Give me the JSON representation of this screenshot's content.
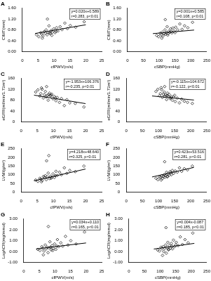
{
  "chart_data": [
    {
      "type": "scatter",
      "title": "A",
      "x_label": "cfPWV(m/s)",
      "y_label": "CIMT(mm)",
      "xlim": [
        0,
        25
      ],
      "xticks": [
        0,
        5,
        10,
        15,
        20,
        25
      ],
      "ylim": [
        0,
        1.6
      ],
      "yticks": [
        {
          "value": 0,
          "label": "0.00"
        },
        {
          "value": 0.4,
          "label": "0.40"
        },
        {
          "value": 0.8,
          "label": "0.80"
        },
        {
          "value": 1.2,
          "label": "1.20"
        },
        {
          "value": 1.6,
          "label": "1.60"
        }
      ],
      "grid": false,
      "annotations": [
        "y=0.020x+0.589",
        "r=0.283, p<0.01"
      ],
      "series": [
        {
          "type": "scatter",
          "marker": "diamond",
          "color": "#000000",
          "x": [
            4.5,
            5.2,
            5.8,
            6.1,
            6.5,
            6.9,
            7.2,
            7.5,
            7.8,
            8.1,
            8.4,
            8.8,
            9.1,
            9.5,
            9.9,
            10.3,
            10.8,
            11.2,
            11.9,
            12.5,
            13.4,
            14.2,
            15.1,
            16.8,
            19.5,
            6.3,
            7.9,
            9.3,
            10.6,
            8.6
          ],
          "values": [
            0.62,
            0.55,
            0.7,
            0.65,
            0.58,
            0.74,
            0.68,
            0.8,
            0.62,
            0.71,
            0.95,
            0.66,
            0.78,
            0.72,
            0.84,
            0.7,
            0.88,
            0.76,
            0.92,
            0.81,
            1.05,
            0.85,
            0.96,
            0.9,
            1.1,
            0.5,
            1.2,
            0.6,
            0.75,
            0.69
          ]
        },
        {
          "type": "line",
          "color": "#000000",
          "x": [
            4,
            20
          ],
          "values": [
            0.669,
            0.989
          ]
        }
      ]
    },
    {
      "type": "scatter",
      "title": "B",
      "x_label": "cSBP(mmHg)",
      "y_label": "CIMT(mm)",
      "xlim": [
        0,
        250
      ],
      "xticks": [
        0,
        50,
        100,
        150,
        200,
        250
      ],
      "ylim": [
        0,
        1.6
      ],
      "yticks": [
        {
          "value": 0,
          "label": "0.00"
        },
        {
          "value": 0.4,
          "label": "0.40"
        },
        {
          "value": 0.8,
          "label": "0.80"
        },
        {
          "value": 1.2,
          "label": "1.20"
        },
        {
          "value": 1.6,
          "label": "1.60"
        }
      ],
      "grid": false,
      "annotations": [
        "y=0.001x+0.585",
        "r=0.108, p<0.01"
      ],
      "series": [
        {
          "type": "scatter",
          "marker": "diamond",
          "color": "#000000",
          "x": [
            92,
            98,
            103,
            106,
            110,
            112,
            115,
            118,
            120,
            122,
            125,
            128,
            130,
            133,
            136,
            140,
            143,
            147,
            152,
            158,
            165,
            172,
            180,
            190,
            205,
            108,
            119,
            127,
            138,
            150
          ],
          "values": [
            0.6,
            0.55,
            0.68,
            0.62,
            0.72,
            0.58,
            0.66,
            0.8,
            0.64,
            0.7,
            0.92,
            0.67,
            0.75,
            0.71,
            0.84,
            0.69,
            0.87,
            0.76,
            0.9,
            0.8,
            1.02,
            0.82,
            0.95,
            0.88,
            1.08,
            0.5,
            1.18,
            0.61,
            0.74,
            0.7
          ]
        },
        {
          "type": "line",
          "color": "#000000",
          "x": [
            80,
            210
          ],
          "values": [
            0.665,
            0.795
          ]
        }
      ]
    },
    {
      "type": "scatter",
      "title": "C",
      "x_label": "cfPWV(m/s)",
      "y_label": "eGFR(ml/min/1.73m²)",
      "xlim": [
        0,
        25
      ],
      "xticks": [
        0,
        5,
        10,
        15,
        20,
        25
      ],
      "ylim": [
        0,
        160
      ],
      "yticks": [
        0,
        40,
        80,
        120,
        160
      ],
      "grid": false,
      "annotations": [
        "y=-1.953x+106.376",
        "r=-0.235, p<0.01"
      ],
      "series": [
        {
          "type": "scatter",
          "marker": "diamond",
          "color": "#000000",
          "x": [
            4.5,
            5.2,
            5.8,
            6.1,
            6.5,
            6.9,
            7.2,
            7.5,
            7.8,
            8.1,
            8.4,
            8.8,
            9.1,
            9.5,
            9.9,
            10.3,
            10.8,
            11.2,
            11.9,
            12.5,
            13.4,
            14.2,
            15.1,
            16.8,
            19.5,
            6.3,
            7.9,
            9.3,
            10.6,
            8.6
          ],
          "values": [
            110,
            118,
            95,
            104,
            120,
            88,
            100,
            112,
            92,
            98,
            80,
            106,
            96,
            102,
            85,
            94,
            78,
            90,
            72,
            86,
            60,
            82,
            70,
            68,
            55,
            125,
            130,
            98,
            88,
            100
          ]
        },
        {
          "type": "line",
          "color": "#000000",
          "x": [
            4,
            20
          ],
          "values": [
            98.56,
            67.32
          ]
        }
      ]
    },
    {
      "type": "scatter",
      "title": "D",
      "x_label": "cSBP(mmHg)",
      "y_label": "eGFR(ml/min/1.73m²)",
      "xlim": [
        0,
        250
      ],
      "xticks": [
        0,
        50,
        100,
        150,
        200,
        250
      ],
      "ylim": [
        0,
        160
      ],
      "yticks": [
        0,
        40,
        80,
        120,
        160
      ],
      "grid": false,
      "annotations": [
        "y=-0.115x+104.672",
        "r=-0.122, p<0.01"
      ],
      "series": [
        {
          "type": "scatter",
          "marker": "diamond",
          "color": "#000000",
          "x": [
            92,
            98,
            103,
            106,
            110,
            112,
            115,
            118,
            120,
            122,
            125,
            128,
            130,
            133,
            136,
            140,
            143,
            147,
            152,
            158,
            165,
            172,
            180,
            190,
            205,
            108,
            119,
            127,
            138,
            150
          ],
          "values": [
            112,
            120,
            96,
            104,
            118,
            90,
            102,
            110,
            94,
            99,
            82,
            106,
            95,
            101,
            86,
            93,
            80,
            92,
            75,
            88,
            70,
            84,
            76,
            72,
            68,
            126,
            130,
            97,
            89,
            98
          ]
        },
        {
          "type": "line",
          "color": "#000000",
          "x": [
            80,
            210
          ],
          "values": [
            95.47,
            80.52
          ]
        }
      ]
    },
    {
      "type": "scatter",
      "title": "E",
      "x_label": "cfPWV(m/s)",
      "y_label": "LVMI(g/m²)",
      "xlim": [
        0,
        25
      ],
      "xticks": [
        0,
        5,
        10,
        15,
        20,
        25
      ],
      "ylim": [
        0,
        250
      ],
      "yticks": [
        0,
        50,
        100,
        150,
        200,
        250
      ],
      "grid": false,
      "annotations": [
        "y=4.218x+48.640",
        "r=0.325, p<0.01"
      ],
      "series": [
        {
          "type": "scatter",
          "marker": "diamond",
          "color": "#000000",
          "x": [
            4.5,
            5.2,
            5.8,
            6.1,
            6.5,
            6.9,
            7.2,
            7.5,
            7.8,
            8.1,
            8.4,
            8.8,
            9.1,
            9.5,
            9.9,
            10.3,
            10.8,
            11.2,
            11.9,
            12.5,
            13.4,
            14.2,
            15.1,
            16.8,
            19.5,
            6.3,
            7.9,
            9.3,
            10.6,
            8.6
          ],
          "values": [
            70,
            62,
            80,
            75,
            68,
            90,
            85,
            95,
            72,
            88,
            110,
            78,
            92,
            86,
            105,
            84,
            120,
            96,
            115,
            100,
            140,
            108,
            125,
            118,
            150,
            60,
            180,
            80,
            95,
            210
          ]
        },
        {
          "type": "line",
          "color": "#000000",
          "x": [
            4,
            20
          ],
          "values": [
            65.51,
            133.0
          ]
        }
      ]
    },
    {
      "type": "scatter",
      "title": "F",
      "x_label": "cSBP(mmHg)",
      "y_label": "LVMI(g/m²)",
      "xlim": [
        0,
        250
      ],
      "xticks": [
        0,
        50,
        100,
        150,
        200,
        250
      ],
      "ylim": [
        0,
        250
      ],
      "yticks": [
        0,
        50,
        100,
        150,
        200,
        250
      ],
      "grid": false,
      "annotations": [
        "y=0.423x+53.516",
        "r=0.281, p<0.01"
      ],
      "series": [
        {
          "type": "scatter",
          "marker": "diamond",
          "color": "#000000",
          "x": [
            92,
            98,
            103,
            106,
            110,
            112,
            115,
            118,
            120,
            122,
            125,
            128,
            130,
            133,
            136,
            140,
            143,
            147,
            152,
            158,
            165,
            172,
            180,
            190,
            205,
            108,
            119,
            127,
            138,
            150
          ],
          "values": [
            80,
            72,
            88,
            85,
            94,
            78,
            90,
            100,
            86,
            95,
            115,
            90,
            105,
            98,
            118,
            100,
            125,
            108,
            122,
            115,
            140,
            120,
            135,
            128,
            150,
            70,
            175,
            88,
            112,
            200
          ]
        },
        {
          "type": "line",
          "color": "#000000",
          "x": [
            80,
            210
          ],
          "values": [
            87.36,
            142.35
          ]
        }
      ]
    },
    {
      "type": "scatter",
      "title": "G",
      "x_label": "cfPWV(m/s)",
      "y_label": "LogACR(mg/mmol)",
      "xlim": [
        0,
        25
      ],
      "xticks": [
        0,
        5,
        10,
        15,
        20,
        25
      ],
      "ylim": [
        -1,
        3
      ],
      "yticks": [
        {
          "value": -1,
          "label": "-1.00"
        },
        {
          "value": 0,
          "label": "0.00"
        },
        {
          "value": 1,
          "label": "1.00"
        },
        {
          "value": 2,
          "label": "2.00"
        },
        {
          "value": 3,
          "label": "3.00"
        }
      ],
      "grid": false,
      "annotations": [
        "y=0.034x+0.110",
        "r=0.165, p<0.01"
      ],
      "series": [
        {
          "type": "scatter",
          "marker": "diamond",
          "color": "#000000",
          "x": [
            4.5,
            5.2,
            5.8,
            6.1,
            6.5,
            6.9,
            7.2,
            7.5,
            7.8,
            8.1,
            8.4,
            8.8,
            9.1,
            9.5,
            9.9,
            10.3,
            10.8,
            11.2,
            11.9,
            12.5,
            13.4,
            14.2,
            15.1,
            16.8,
            19.5,
            6.3,
            7.9,
            9.3,
            10.6,
            8.6
          ],
          "values": [
            0.2,
            0.1,
            0.45,
            0.3,
            0.05,
            0.6,
            0.25,
            0.4,
            -0.1,
            0.35,
            0.9,
            0.15,
            0.55,
            0.3,
            0.7,
            0.2,
            1.1,
            0.45,
            0.8,
            0.5,
            1.4,
            0.6,
            1.0,
            0.7,
            1.8,
            -0.3,
            2.3,
            0.1,
            0.5,
            0.4
          ]
        },
        {
          "type": "line",
          "color": "#000000",
          "x": [
            4,
            20
          ],
          "values": [
            0.246,
            0.79
          ]
        }
      ]
    },
    {
      "type": "scatter",
      "title": "H",
      "x_label": "cSBP(mmHg)",
      "y_label": "LogACR(mg/mmol)",
      "xlim": [
        0,
        250
      ],
      "xticks": [
        0,
        50,
        100,
        150,
        200,
        250
      ],
      "ylim": [
        -1,
        3
      ],
      "yticks": [
        {
          "value": -1,
          "label": "-1.00"
        },
        {
          "value": 0,
          "label": "0.00"
        },
        {
          "value": 1,
          "label": "1.00"
        },
        {
          "value": 2,
          "label": "2.00"
        },
        {
          "value": 3,
          "label": "3.00"
        }
      ],
      "grid": false,
      "annotations": [
        "y=0.004x-0.087",
        "r=0.185, p<0.01"
      ],
      "series": [
        {
          "type": "scatter",
          "marker": "diamond",
          "color": "#000000",
          "x": [
            92,
            98,
            103,
            106,
            110,
            112,
            115,
            118,
            120,
            122,
            125,
            128,
            130,
            133,
            136,
            140,
            143,
            147,
            152,
            158,
            165,
            172,
            180,
            190,
            205,
            108,
            119,
            127,
            138,
            150
          ],
          "values": [
            0.15,
            0.05,
            0.4,
            0.25,
            0.45,
            0.0,
            0.3,
            0.6,
            -0.15,
            0.35,
            0.85,
            0.2,
            0.55,
            0.3,
            0.75,
            0.25,
            1.05,
            0.45,
            0.85,
            0.55,
            1.35,
            0.65,
            1.1,
            0.8,
            1.7,
            -0.35,
            2.2,
            0.15,
            0.5,
            0.6
          ]
        },
        {
          "type": "line",
          "color": "#000000",
          "x": [
            80,
            210
          ],
          "values": [
            0.233,
            0.753
          ]
        }
      ]
    }
  ]
}
